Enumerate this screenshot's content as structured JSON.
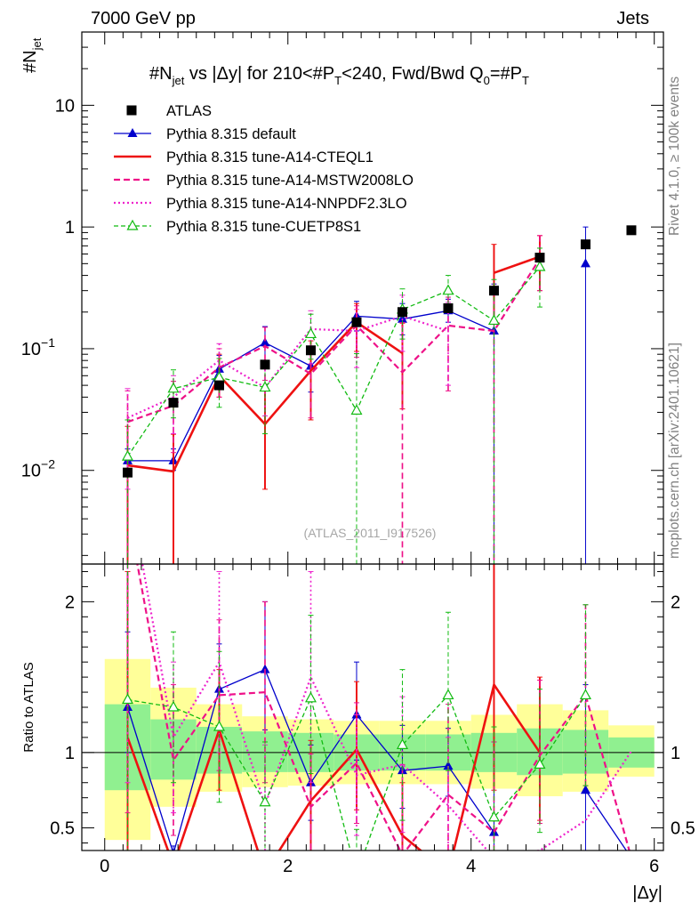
{
  "header": {
    "left": "7000 GeV pp",
    "right": "Jets"
  },
  "side_labels": {
    "top": "Rivet 4.1.0, ≥ 100k events",
    "bottom": "mcplots.cern.ch [arXiv:2401.10621]"
  },
  "watermark": "(ATLAS_2011_I917526)",
  "colors": {
    "atlas": "#000000",
    "default": "#0000cc",
    "cteql1": "#ee1111",
    "mstw": "#ee1188",
    "nnpdf": "#ee22cc",
    "cuetp8s1": "#11bb11",
    "band_inner": "#90f090",
    "band_outer": "#ffff99"
  },
  "chart_data": [
    {
      "type": "scatter",
      "panel": "main",
      "title": "#N_jet vs |Δy| for 210<#P_T<240, Fwd/Bwd Q0=#P_T",
      "title_parts": {
        "t1": "#N",
        "t2": "jet",
        "t3": " vs |Δy|  for 210<#P",
        "t4": "T",
        "t5": "<240, Fwd/Bwd Q",
        "t6": "0",
        "t7": "=#P",
        "t8": "T"
      },
      "ylabel": "#N_jet",
      "ylabel_parts": {
        "main": "#N",
        "sub": "jet"
      },
      "yscale": "log",
      "ylim": [
        0.0017,
        40
      ],
      "xlim": [
        -0.25,
        6.1
      ],
      "yticks": [
        {
          "v": 0.01,
          "base": "10",
          "exp": "−2"
        },
        {
          "v": 0.1,
          "base": "10",
          "exp": "−1"
        },
        {
          "v": 1,
          "base": "1",
          "exp": ""
        },
        {
          "v": 10,
          "base": "10",
          "exp": ""
        }
      ],
      "legend": {
        "placement": "top-left",
        "entries": [
          {
            "key": "atlas",
            "label": "ATLAS"
          },
          {
            "key": "default",
            "label": "Pythia 8.315 default"
          },
          {
            "key": "cteql1",
            "label": "Pythia 8.315 tune-A14-CTEQL1"
          },
          {
            "key": "mstw",
            "label": "Pythia 8.315 tune-A14-MSTW2008LO"
          },
          {
            "key": "nnpdf",
            "label": "Pythia 8.315 tune-A14-NNPDF2.3LO"
          },
          {
            "key": "cuetp8s1",
            "label": "Pythia 8.315 tune-CUETP8S1"
          }
        ]
      },
      "x": [
        0.25,
        0.75,
        1.25,
        1.75,
        2.25,
        2.75,
        3.25,
        3.75,
        4.25,
        4.75,
        5.25,
        5.75
      ],
      "series": [
        {
          "key": "atlas",
          "name": "ATLAS",
          "values": [
            0.0096,
            0.036,
            0.05,
            0.074,
            0.097,
            0.165,
            0.2,
            0.215,
            0.3,
            0.56,
            0.72,
            0.94
          ]
        },
        {
          "key": "default",
          "name": "Pythia 8.315 default",
          "values": [
            0.012,
            0.012,
            0.068,
            0.112,
            0.072,
            0.185,
            0.175,
            0.205,
            0.14,
            null,
            0.5,
            null
          ],
          "err_lo": [
            0.002,
            0.002,
            0.018,
            0.035,
            0.028,
            0.045,
            0.045,
            0.04,
            0.1395,
            null,
            0.4995,
            null
          ],
          "err_hi": [
            0.003,
            0.003,
            0.02,
            0.04,
            0.03,
            0.06,
            0.06,
            0.05,
            0.2,
            null,
            0.5,
            null
          ]
        },
        {
          "key": "cteql1",
          "name": "Pythia 8.315 tune-A14-CTEQL1",
          "values": [
            0.011,
            0.0098,
            0.06,
            0.024,
            0.066,
            0.165,
            0.092,
            null,
            0.42,
            0.57,
            null,
            null
          ],
          "err_lo": [
            0.0109,
            0.0097,
            0.02,
            0.017,
            0.04,
            0.07,
            0.06,
            null,
            0.25,
            0.27,
            null,
            null
          ],
          "err_hi": [
            0.012,
            0.01,
            0.03,
            0.025,
            0.05,
            0.07,
            0.07,
            null,
            0.3,
            0.28,
            null,
            null
          ]
        },
        {
          "key": "mstw",
          "name": "Pythia 8.315 tune-A14-MSTW2008LO",
          "values": [
            0.025,
            0.034,
            0.07,
            0.105,
            0.062,
            0.155,
            0.064,
            0.155,
            0.14,
            0.55,
            null,
            null
          ],
          "err_lo": [
            0.0249,
            0.02,
            0.03,
            0.05,
            0.035,
            0.07,
            0.0639,
            0.11,
            0.1395,
            0.25,
            null,
            null
          ],
          "err_hi": [
            0.02,
            0.02,
            0.03,
            0.045,
            0.03,
            0.07,
            0.1,
            0.11,
            0.17,
            0.3,
            null,
            null
          ]
        },
        {
          "key": "nnpdf",
          "name": "Pythia 8.315 tune-A14-NNPDF2.3LO",
          "values": [
            0.027,
            0.04,
            0.08,
            0.048,
            0.145,
            0.14,
            0.185,
            0.14,
            null,
            null,
            null,
            0.95
          ],
          "err_lo": [
            0.02,
            0.02,
            0.03,
            0.02,
            0.07,
            0.07,
            0.09,
            0.09,
            null,
            null,
            null,
            0.05
          ],
          "err_hi": [
            0.02,
            0.02,
            0.03,
            0.03,
            0.06,
            0.07,
            0.09,
            0.1,
            null,
            null,
            null,
            0.05
          ]
        },
        {
          "key": "cuetp8s1",
          "name": "Pythia 8.315 tune-CUETP8S1",
          "values": [
            0.013,
            0.047,
            0.058,
            0.048,
            0.132,
            0.031,
            0.21,
            0.3,
            0.17,
            0.47,
            null,
            null
          ],
          "err_lo": [
            0.0129,
            0.02,
            0.025,
            0.028,
            0.05,
            0.0309,
            0.09,
            0.1,
            0.1695,
            0.25,
            null,
            null
          ],
          "err_hi": [
            0.013,
            0.02,
            0.025,
            0.03,
            0.06,
            0.06,
            0.1,
            0.1,
            0.2,
            0.2,
            null,
            null
          ]
        }
      ]
    },
    {
      "type": "line",
      "panel": "ratio",
      "ylabel": "Ratio to ATLAS",
      "ylim": [
        0.35,
        2.25
      ],
      "yticks": [
        0.5,
        1,
        2
      ],
      "ytick_labels": [
        "0.5",
        "1",
        "2"
      ],
      "xlabel": "|Δy|",
      "xticks": [
        0,
        2,
        4,
        6
      ],
      "xtick_labels": [
        "0",
        "2",
        "4",
        "6"
      ],
      "bins": [
        [
          0,
          0.5
        ],
        [
          0.5,
          1.0
        ],
        [
          1.0,
          1.5
        ],
        [
          1.5,
          2.0
        ],
        [
          2.0,
          2.5
        ],
        [
          2.5,
          3.0
        ],
        [
          3.0,
          3.5
        ],
        [
          3.5,
          4.0
        ],
        [
          4.0,
          4.5
        ],
        [
          4.5,
          5.0
        ],
        [
          5.0,
          5.5
        ],
        [
          5.5,
          6.0
        ]
      ],
      "band_inner": [
        [
          0.75,
          1.32
        ],
        [
          0.82,
          1.22
        ],
        [
          0.86,
          1.17
        ],
        [
          0.87,
          1.14
        ],
        [
          0.87,
          1.13
        ],
        [
          0.88,
          1.12
        ],
        [
          0.88,
          1.12
        ],
        [
          0.88,
          1.12
        ],
        [
          0.87,
          1.13
        ],
        [
          0.85,
          1.16
        ],
        [
          0.86,
          1.15
        ],
        [
          0.9,
          1.1
        ]
      ],
      "band_outer": [
        [
          0.42,
          1.62
        ],
        [
          0.64,
          1.43
        ],
        [
          0.74,
          1.32
        ],
        [
          0.77,
          1.24
        ],
        [
          0.78,
          1.22
        ],
        [
          0.79,
          1.21
        ],
        [
          0.79,
          1.21
        ],
        [
          0.79,
          1.21
        ],
        [
          0.76,
          1.25
        ],
        [
          0.71,
          1.32
        ],
        [
          0.74,
          1.28
        ],
        [
          0.84,
          1.18
        ]
      ],
      "x": [
        0.25,
        0.75,
        1.25,
        1.75,
        2.25,
        2.75,
        3.25,
        3.75,
        4.25,
        4.75,
        5.25,
        5.75
      ],
      "series": [
        {
          "key": "default",
          "name": "Pythia 8.315 default",
          "values": [
            1.3,
            0.33,
            1.42,
            1.55,
            0.8,
            1.25,
            0.88,
            0.91,
            0.47,
            null,
            0.75,
            0.3
          ],
          "err_lo": [
            0.3,
            0.05,
            0.3,
            0.4,
            0.25,
            0.3,
            0.25,
            0.2,
            0.45,
            null,
            0.7,
            null
          ],
          "err_hi": [
            0.5,
            0.05,
            0.3,
            0.45,
            0.25,
            0.35,
            0.3,
            0.25,
            0.6,
            null,
            0.7,
            null
          ]
        },
        {
          "key": "cteql1",
          "name": "Pythia 8.315 tune-A14-CTEQL1",
          "values": [
            1.1,
            0.25,
            1.15,
            0.2,
            0.68,
            1.02,
            0.45,
            0.2,
            1.45,
            1.0,
            null,
            null
          ],
          "err_lo": [
            0.9,
            0.05,
            0.4,
            0.1,
            0.35,
            0.4,
            0.35,
            null,
            0.7,
            0.45,
            null,
            null
          ],
          "err_hi": [
            1.1,
            0.05,
            0.4,
            0.1,
            0.4,
            0.45,
            0.35,
            null,
            0.8,
            0.5,
            null,
            null
          ]
        },
        {
          "key": "mstw",
          "name": "Pythia 8.315 tune-A14-MSTW2008LO",
          "values": [
            2.6,
            0.95,
            1.38,
            1.4,
            0.64,
            0.93,
            0.32,
            0.72,
            0.47,
            0.98,
            1.38,
            0.3
          ],
          "err_lo": [
            2.0,
            0.5,
            0.5,
            0.6,
            0.35,
            0.4,
            0.3,
            0.5,
            0.45,
            0.45,
            0.6,
            null
          ],
          "err_hi": [
            2.0,
            0.5,
            0.5,
            0.6,
            0.35,
            0.4,
            0.6,
            0.6,
            0.6,
            0.5,
            0.6,
            null
          ]
        },
        {
          "key": "nnpdf",
          "name": "Pythia 8.315 tune-A14-NNPDF2.3LO",
          "values": [
            2.8,
            1.1,
            1.6,
            0.65,
            1.5,
            0.85,
            0.92,
            0.65,
            0.3,
            0.35,
            0.55,
            1.01
          ],
          "err_lo": [
            2.0,
            0.5,
            0.6,
            0.3,
            0.7,
            0.4,
            0.45,
            0.4,
            null,
            null,
            null,
            null
          ],
          "err_hi": [
            2.0,
            0.5,
            0.6,
            0.4,
            0.7,
            0.4,
            0.45,
            0.45,
            null,
            null,
            null,
            null
          ]
        },
        {
          "key": "cuetp8s1",
          "name": "Pythia 8.315 tune-CUETP8S1",
          "values": [
            1.35,
            1.3,
            1.17,
            0.67,
            1.36,
            0.19,
            1.05,
            1.38,
            0.57,
            0.92,
            1.38,
            null
          ],
          "err_lo": [
            1.3,
            0.5,
            0.5,
            0.4,
            0.5,
            0.15,
            0.5,
            0.5,
            0.55,
            0.45,
            0.6,
            null
          ],
          "err_hi": [
            1.3,
            0.5,
            0.5,
            0.4,
            0.55,
            0.3,
            0.5,
            0.55,
            0.6,
            0.5,
            0.6,
            null
          ]
        }
      ]
    }
  ]
}
